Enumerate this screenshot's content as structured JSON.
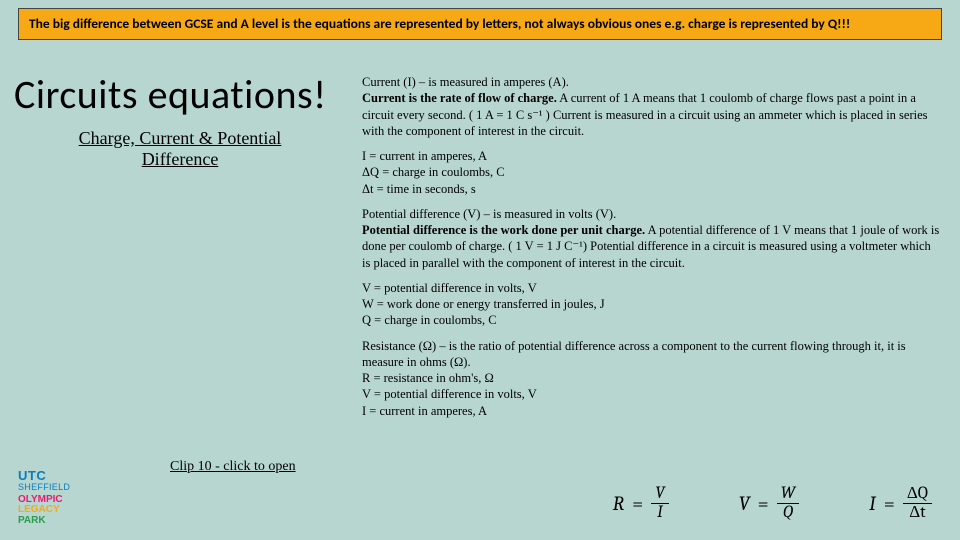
{
  "banner": "The big difference between GCSE and A level is the equations are represented by letters, not always obvious ones e.g. charge is represented by Q!!!",
  "title": "Circuits equations!",
  "subtitle": "Charge, Current & Potential Difference",
  "current": {
    "lead": "Current (I) – is measured in amperes (A).",
    "bold": "Current is the rate of flow of charge.",
    "rest": " A current of 1 A means that 1 coulomb of charge flows past a point in a circuit every second. ( 1 A = 1 C s⁻¹ ) Current is measured in a circuit using an ammeter which is placed in series with the component of interest in the circuit.",
    "def1": "I = current in amperes, A",
    "def2": "ΔQ =  charge in coulombs, C",
    "def3": "Δt = time in seconds, s"
  },
  "pd": {
    "lead": "Potential difference (V) –  is measured in volts (V).",
    "bold": "Potential difference is the work done per unit charge.",
    "rest": " A potential difference of 1 V means that 1 joule of work is done per coulomb of charge. ( 1 V = 1 J C⁻¹) Potential difference in a circuit is measured using a voltmeter which is placed in parallel with the component of interest in the circuit.",
    "def1": "V = potential difference in volts, V",
    "def2": "W = work done or energy transferred in joules, J",
    "def3": "Q = charge in coulombs, C"
  },
  "res": {
    "lead": "Resistance (Ω) – is the ratio of potential difference across a component to the current flowing through it, it is measure in ohms (Ω).",
    "def1": "R = resistance in ohm's, Ω",
    "def2": "V = potential difference in volts, V",
    "def3": "I = current in amperes, A"
  },
  "clip": "Clip 10 - click to open ",
  "logo": {
    "l1": "UTC",
    "l2": "SHEFFIELD",
    "l3": "OLYMPIC",
    "l4": "LEGACY",
    "l5": "PARK"
  },
  "eq": {
    "r_lhs": "R",
    "r_num": "V",
    "r_den": "I",
    "v_lhs": "V",
    "v_num": "W",
    "v_den": "Q",
    "i_lhs": "I",
    "i_num": "ΔQ",
    "i_den": "Δt",
    "equals": "="
  }
}
